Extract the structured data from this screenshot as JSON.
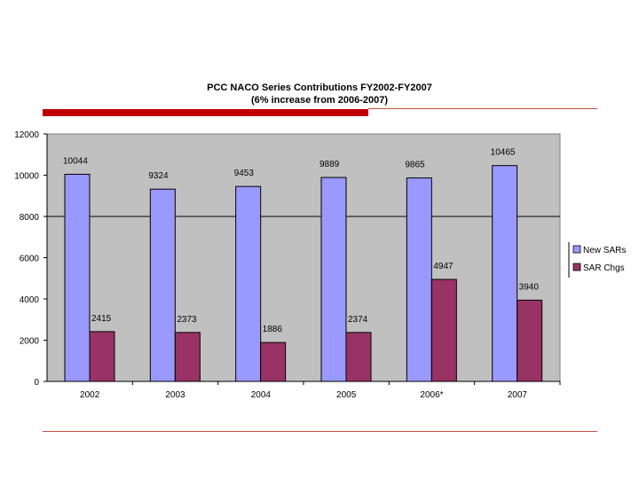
{
  "chart_data": {
    "type": "bar",
    "title": "PCC NACO Series Contributions FY2002-FY2007",
    "subtitle": "(6% increase from 2006-2007)",
    "categories": [
      "2002",
      "2003",
      "2004",
      "2005",
      "2006*",
      "2007"
    ],
    "series": [
      {
        "name": "New SARs",
        "values": [
          10044,
          9324,
          9453,
          9889,
          9865,
          10465
        ],
        "color": "#9999ff"
      },
      {
        "name": "SAR Chgs",
        "values": [
          2415,
          2373,
          1886,
          2374,
          4947,
          3940
        ],
        "color": "#993366"
      }
    ],
    "ylim": [
      0,
      12000
    ],
    "yticks": [
      0,
      2000,
      4000,
      6000,
      8000,
      10000,
      12000
    ],
    "gridlines": [
      8000
    ],
    "legend_position": "right",
    "plot_background": "#c0c0c0"
  }
}
